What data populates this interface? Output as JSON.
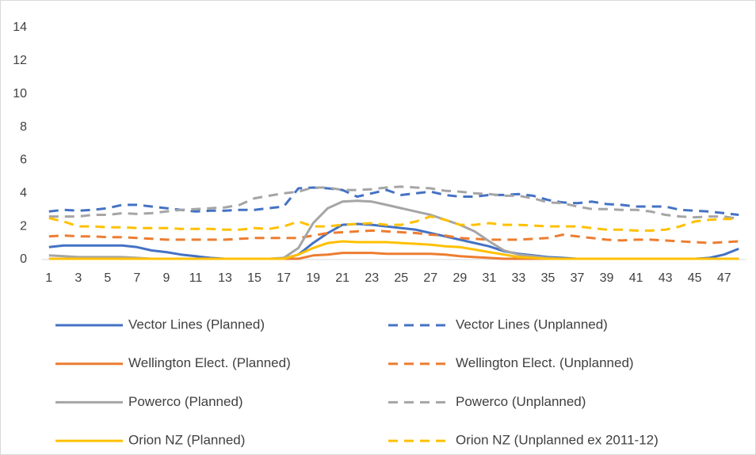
{
  "chart_data": {
    "type": "line",
    "categories": [
      1,
      null,
      3,
      null,
      5,
      null,
      7,
      null,
      9,
      null,
      11,
      null,
      13,
      null,
      15,
      null,
      17,
      null,
      19,
      null,
      21,
      null,
      23,
      null,
      25,
      null,
      27,
      null,
      29,
      null,
      31,
      null,
      33,
      null,
      35,
      null,
      37,
      null,
      39,
      null,
      41,
      null,
      43,
      null,
      45,
      null,
      47,
      null
    ],
    "ylim": [
      0,
      14
    ],
    "yticks": [
      0,
      2,
      4,
      6,
      8,
      10,
      12,
      14
    ],
    "grid": false,
    "legend": "bottom",
    "series": [
      {
        "name": "Vector Lines (Planned)",
        "color": "#4472c4",
        "dashed": false,
        "values": [
          0.75,
          0.85,
          0.85,
          0.85,
          0.85,
          0.85,
          0.75,
          0.55,
          0.45,
          0.3,
          0.2,
          0.1,
          0.05,
          0.05,
          0.05,
          0.05,
          0.05,
          0.3,
          1.0,
          1.6,
          2.1,
          2.15,
          2.1,
          2.0,
          1.9,
          1.8,
          1.6,
          1.4,
          1.2,
          1.0,
          0.8,
          0.5,
          0.35,
          0.25,
          0.15,
          0.1,
          0.05,
          0.05,
          0.05,
          0.05,
          0.05,
          0.05,
          0.05,
          0.05,
          0.05,
          0.1,
          0.3,
          0.65
        ]
      },
      {
        "name": "Vector Lines (Unplanned)",
        "color": "#4472c4",
        "dashed": true,
        "values": [
          2.9,
          3.0,
          2.95,
          3.0,
          3.1,
          3.3,
          3.3,
          3.2,
          3.1,
          3.0,
          2.9,
          2.95,
          2.95,
          3.0,
          3.0,
          3.1,
          3.2,
          4.3,
          4.35,
          4.3,
          4.2,
          3.8,
          4.0,
          4.2,
          3.9,
          4.0,
          4.1,
          3.9,
          3.8,
          3.8,
          3.9,
          3.9,
          3.95,
          3.85,
          3.6,
          3.45,
          3.4,
          3.5,
          3.35,
          3.3,
          3.2,
          3.2,
          3.2,
          3.0,
          2.95,
          2.9,
          2.8,
          2.7
        ]
      },
      {
        "name": "Wellington Elect. (Planned)",
        "color": "#ed7d31",
        "dashed": false,
        "values": [
          0.05,
          0.05,
          0.05,
          0.05,
          0.05,
          0.05,
          0.05,
          0.05,
          0.05,
          0.05,
          0.05,
          0.05,
          0.05,
          0.05,
          0.05,
          0.05,
          0.05,
          0.05,
          0.25,
          0.3,
          0.4,
          0.4,
          0.4,
          0.35,
          0.35,
          0.35,
          0.35,
          0.3,
          0.2,
          0.15,
          0.1,
          0.05,
          0.05,
          0.05,
          0.05,
          0.05,
          0.05,
          0.05,
          0.05,
          0.05,
          0.05,
          0.05,
          0.05,
          0.05,
          0.05,
          0.05,
          0.05,
          0.05
        ]
      },
      {
        "name": "Wellington Elect. (Unplanned)",
        "color": "#ed7d31",
        "dashed": true,
        "values": [
          1.4,
          1.45,
          1.4,
          1.4,
          1.35,
          1.35,
          1.3,
          1.25,
          1.2,
          1.2,
          1.2,
          1.2,
          1.2,
          1.25,
          1.3,
          1.3,
          1.3,
          1.3,
          1.45,
          1.6,
          1.65,
          1.7,
          1.75,
          1.7,
          1.65,
          1.6,
          1.5,
          1.45,
          1.3,
          1.25,
          1.2,
          1.2,
          1.2,
          1.25,
          1.3,
          1.5,
          1.4,
          1.3,
          1.2,
          1.15,
          1.2,
          1.2,
          1.15,
          1.1,
          1.05,
          1.0,
          1.05,
          1.1
        ]
      },
      {
        "name": "Powerco (Planned)",
        "color": "#a5a5a5",
        "dashed": false,
        "values": [
          0.25,
          0.2,
          0.15,
          0.15,
          0.15,
          0.15,
          0.1,
          0.05,
          0.05,
          0.05,
          0.05,
          0.05,
          0.05,
          0.05,
          0.05,
          0.05,
          0.1,
          0.7,
          2.2,
          3.1,
          3.5,
          3.55,
          3.5,
          3.3,
          3.1,
          2.9,
          2.7,
          2.4,
          2.1,
          1.7,
          1.1,
          0.55,
          0.3,
          0.2,
          0.1,
          0.05,
          0.05,
          0.05,
          0.05,
          0.05,
          0.05,
          0.05,
          0.05,
          0.05,
          0.05,
          0.05,
          0.05,
          0.05
        ]
      },
      {
        "name": "Powerco (Unplanned)",
        "color": "#a5a5a5",
        "dashed": true,
        "values": [
          2.6,
          2.6,
          2.6,
          2.7,
          2.7,
          2.8,
          2.75,
          2.8,
          2.9,
          3.0,
          3.05,
          3.1,
          3.15,
          3.3,
          3.7,
          3.85,
          4.0,
          4.1,
          4.35,
          4.35,
          4.2,
          4.2,
          4.25,
          4.35,
          4.4,
          4.35,
          4.3,
          4.15,
          4.1,
          4.0,
          3.95,
          3.85,
          3.85,
          3.7,
          3.45,
          3.4,
          3.2,
          3.05,
          3.05,
          3.0,
          3.0,
          2.9,
          2.7,
          2.6,
          2.55,
          2.6,
          2.6,
          2.45
        ]
      },
      {
        "name": "Orion NZ (Planned)",
        "color": "#ffc000",
        "dashed": false,
        "values": [
          0.05,
          0.05,
          0.05,
          0.05,
          0.05,
          0.05,
          0.05,
          0.05,
          0.05,
          0.05,
          0.05,
          0.05,
          0.05,
          0.05,
          0.05,
          0.05,
          0.05,
          0.3,
          0.7,
          1.0,
          1.1,
          1.05,
          1.05,
          1.05,
          1.0,
          0.95,
          0.9,
          0.8,
          0.75,
          0.6,
          0.45,
          0.3,
          0.15,
          0.1,
          0.05,
          0.05,
          0.05,
          0.05,
          0.05,
          0.05,
          0.05,
          0.05,
          0.05,
          0.05,
          0.05,
          0.05,
          0.05,
          0.05
        ]
      },
      {
        "name": "Orion NZ (Unplanned ex 2011-12)",
        "color": "#ffc000",
        "dashed": true,
        "values": [
          2.5,
          2.3,
          2.0,
          2.0,
          1.95,
          1.95,
          1.9,
          1.9,
          1.9,
          1.85,
          1.85,
          1.85,
          1.8,
          1.8,
          1.9,
          1.85,
          2.0,
          2.3,
          2.0,
          2.0,
          2.1,
          2.15,
          2.2,
          2.1,
          2.1,
          2.3,
          2.6,
          2.4,
          2.1,
          2.1,
          2.2,
          2.1,
          2.1,
          2.05,
          2.0,
          2.0,
          2.0,
          1.9,
          1.8,
          1.8,
          1.75,
          1.75,
          1.8,
          2.0,
          2.3,
          2.4,
          2.45,
          2.45
        ]
      }
    ]
  }
}
